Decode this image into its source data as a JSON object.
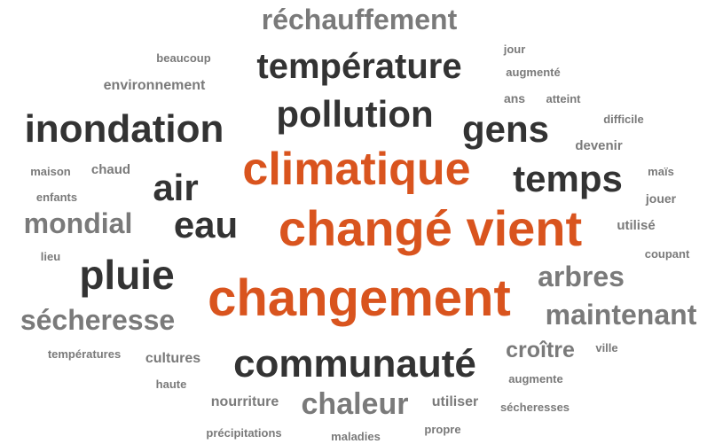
{
  "words": [
    "réchauffement",
    "jour",
    "beaucoup",
    "température",
    "augmenté",
    "environnement",
    "ans",
    "atteint",
    "pollution",
    "inondation",
    "gens",
    "difficile",
    "devenir",
    "climatique",
    "maison",
    "chaud",
    "air",
    "temps",
    "maïs",
    "enfants",
    "jouer",
    "mondial",
    "eau",
    "changé vient",
    "utilisé",
    "lieu",
    "coupant",
    "pluie",
    "arbres",
    "changement",
    "sécheresse",
    "maintenant",
    "croître",
    "ville",
    "températures",
    "cultures",
    "communauté",
    "augmente",
    "haute",
    "nourriture",
    "chaleur",
    "utiliser",
    "sécheresses",
    "précipitations",
    "maladies",
    "propre"
  ]
}
